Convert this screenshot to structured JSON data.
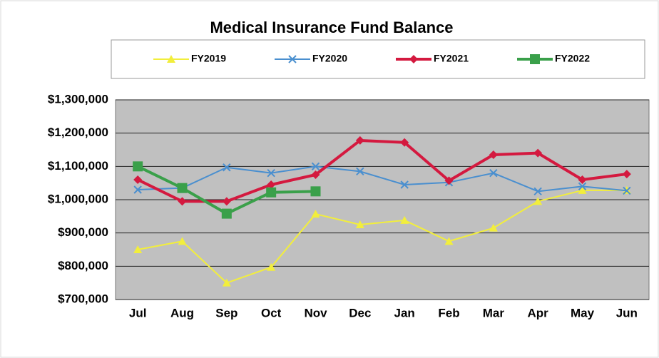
{
  "chart_data": {
    "type": "line",
    "title": "Medical Insurance Fund Balance",
    "categories": [
      "Jul",
      "Aug",
      "Sep",
      "Oct",
      "Nov",
      "Dec",
      "Jan",
      "Feb",
      "Mar",
      "Apr",
      "May",
      "Jun"
    ],
    "series": [
      {
        "name": "FY2019",
        "color": "#f2ee3c",
        "marker": "triangle",
        "width": 2,
        "values": [
          850000,
          875000,
          750000,
          797000,
          957000,
          925000,
          938000,
          875000,
          915000,
          995000,
          1028000,
          1028000
        ]
      },
      {
        "name": "FY2020",
        "color": "#4a8fcf",
        "marker": "x",
        "width": 2,
        "values": [
          1030000,
          1035000,
          1097000,
          1080000,
          1100000,
          1085000,
          1045000,
          1052000,
          1080000,
          1025000,
          1040000,
          1027000
        ]
      },
      {
        "name": "FY2021",
        "color": "#d4193f",
        "marker": "diamond",
        "width": 4,
        "values": [
          1060000,
          995000,
          995000,
          1045000,
          1075000,
          1178000,
          1172000,
          1057000,
          1135000,
          1140000,
          1060000,
          1077000
        ]
      },
      {
        "name": "FY2022",
        "color": "#3aa04a",
        "marker": "square",
        "width": 4,
        "values": [
          1100000,
          1035000,
          958000,
          1022000,
          1025000,
          null,
          null,
          null,
          null,
          null,
          null,
          null
        ]
      }
    ],
    "ylim": [
      700000,
      1300000
    ],
    "yticks": [
      {
        "value": 700000,
        "label": "$700,000"
      },
      {
        "value": 800000,
        "label": "$800,000"
      },
      {
        "value": 900000,
        "label": "$900,000"
      },
      {
        "value": 1000000,
        "label": "$1,000,000"
      },
      {
        "value": 1100000,
        "label": "$1,100,000"
      },
      {
        "value": 1200000,
        "label": "$1,200,000"
      },
      {
        "value": 1300000,
        "label": "$1,300,000"
      }
    ],
    "grid": true,
    "legend": "top"
  }
}
